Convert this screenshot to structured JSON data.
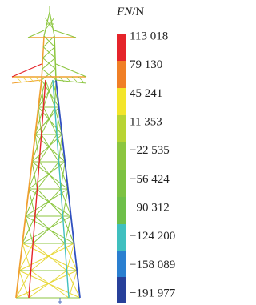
{
  "legend": {
    "symbol": "FN",
    "unit": "/N",
    "labels": [
      "113 018",
      "79 130",
      "45 241",
      "11 353",
      "−22 535",
      "−56 424",
      "−90 312",
      "−124 200",
      "−158 089",
      "−191 977"
    ]
  }
}
